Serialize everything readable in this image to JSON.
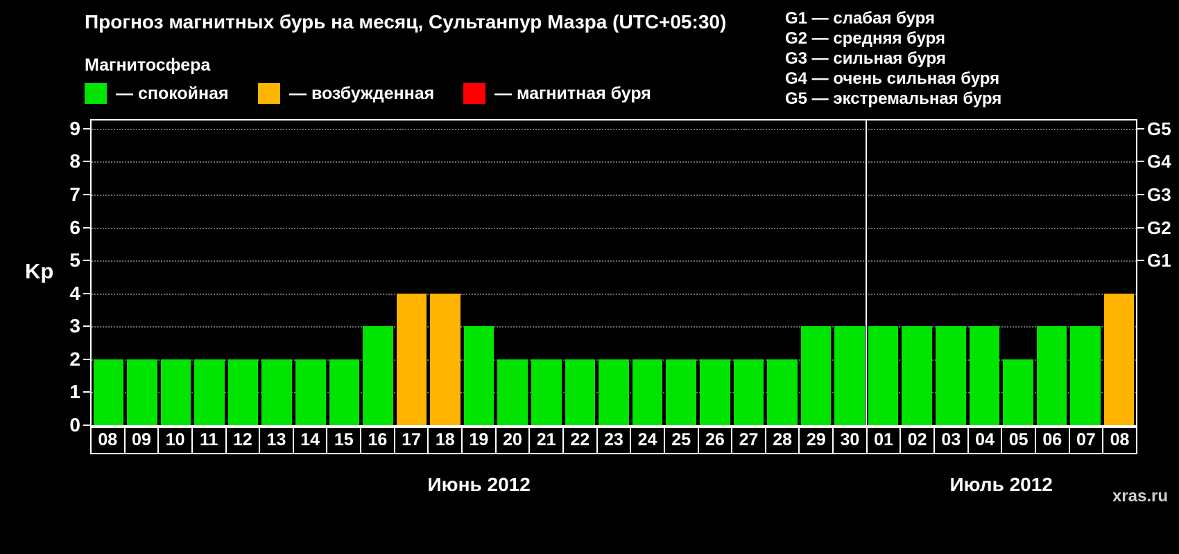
{
  "title": "Прогноз магнитных бурь на месяц, Сультанпур Мазра (UTC+05:30)",
  "ylabel": "Kp",
  "watermark": "xras.ru",
  "magnetosphere": {
    "title": "Магнитосфера",
    "items": [
      {
        "key": "quiet",
        "label": "— спокойная",
        "color": "#00e400"
      },
      {
        "key": "active",
        "label": "— возбужденная",
        "color": "#ffb400"
      },
      {
        "key": "storm",
        "label": "— магнитная буря",
        "color": "#ff0000"
      }
    ]
  },
  "g_legend": {
    "lines": [
      "G1 — слабая буря",
      "G2 — средняя буря",
      "G3 — сильная буря",
      "G4 — очень сильная буря",
      "G5 — экстремальная буря"
    ]
  },
  "chart_data": {
    "type": "bar",
    "categories": [
      "08",
      "09",
      "10",
      "11",
      "12",
      "13",
      "14",
      "15",
      "16",
      "17",
      "18",
      "19",
      "20",
      "21",
      "22",
      "23",
      "24",
      "25",
      "26",
      "27",
      "28",
      "29",
      "30",
      "01",
      "02",
      "03",
      "04",
      "05",
      "06",
      "07",
      "08"
    ],
    "values": [
      2,
      2,
      2,
      2,
      2,
      2,
      2,
      2,
      3,
      4,
      4,
      3,
      2,
      2,
      2,
      2,
      2,
      2,
      2,
      2,
      2,
      3,
      3,
      3,
      3,
      3,
      3,
      2,
      3,
      3,
      4
    ],
    "months": [
      {
        "label": "Июнь 2012",
        "days": 23
      },
      {
        "label": "Июль 2012",
        "days": 8
      }
    ],
    "title": "Прогноз магнитных бурь на месяц, Сультанпур Мазра (UTC+05:30)",
    "xlabel": "",
    "ylabel": "Kp",
    "ylim": [
      0,
      9
    ],
    "yticks": [
      0,
      1,
      2,
      3,
      4,
      5,
      6,
      7,
      8,
      9
    ],
    "right_ticks": [
      {
        "label": "G1",
        "value": 5
      },
      {
        "label": "G2",
        "value": 6
      },
      {
        "label": "G3",
        "value": 7
      },
      {
        "label": "G4",
        "value": 8
      },
      {
        "label": "G5",
        "value": 9
      }
    ],
    "palette": {
      "quiet": "#00e400",
      "active": "#ffb400",
      "storm": "#ff0000"
    },
    "thresholds": {
      "active_min": 4,
      "storm_min": 5
    },
    "grid": "dotted-horizontal",
    "legend_position": "top"
  }
}
